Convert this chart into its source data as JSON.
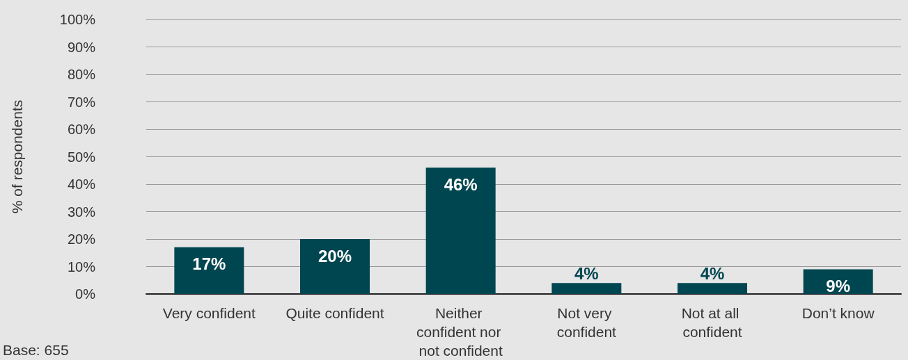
{
  "chart_data": {
    "type": "bar",
    "ylabel": "% of respondents",
    "categories": [
      "Very confident",
      "Quite confident",
      "Neither confident nor not confident",
      "Not very confident",
      "Not at all confident",
      "Don’t know"
    ],
    "values": [
      17,
      20,
      46,
      4,
      4,
      9
    ],
    "color": "#004650",
    "ylim": [
      0,
      100
    ],
    "yticks": [
      {
        "value": 0,
        "label": "0%"
      },
      {
        "value": 10,
        "label": "10%"
      },
      {
        "value": 20,
        "label": "20%"
      },
      {
        "value": 30,
        "label": "30%"
      },
      {
        "value": 40,
        "label": "40%"
      },
      {
        "value": 50,
        "label": "50%"
      },
      {
        "value": 60,
        "label": "60%"
      },
      {
        "value": 70,
        "label": "70%"
      },
      {
        "value": 80,
        "label": "80%"
      },
      {
        "value": 90,
        "label": "90%"
      },
      {
        "value": 100,
        "label": "100%"
      }
    ],
    "value_labels": [
      "17%",
      "20%",
      "46%",
      "4%",
      "4%",
      "9%"
    ],
    "grid": "y",
    "annotations": [
      "Base: 655"
    ]
  }
}
